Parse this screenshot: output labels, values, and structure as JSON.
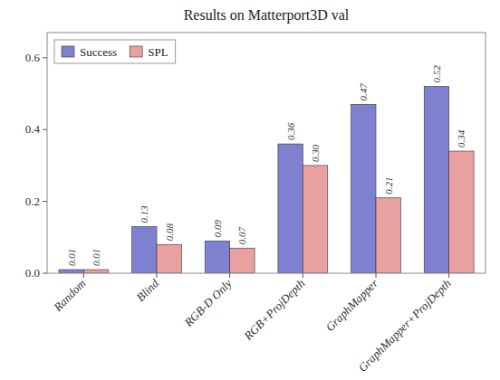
{
  "chart_data": {
    "type": "bar",
    "title": "Results on Matterport3D val",
    "categories": [
      "Random",
      "Blind",
      "RGB-D Only",
      "RGB+ProjDepth",
      "GraphMapper",
      "GraphMapper+ProjDepth"
    ],
    "series": [
      {
        "name": "Success",
        "color": "#8080d0",
        "values": [
          0.01,
          0.13,
          0.09,
          0.36,
          0.47,
          0.52
        ],
        "value_labels": [
          "0.01",
          "0.13",
          "0.09",
          "0.36",
          "0.47",
          "0.52"
        ]
      },
      {
        "name": "SPL",
        "color": "#e8a0a0",
        "values": [
          0.01,
          0.08,
          0.07,
          0.3,
          0.21,
          0.34
        ],
        "value_labels": [
          "0.01",
          "0.08",
          "0.07",
          "0.30",
          "0.21",
          "0.34"
        ]
      }
    ],
    "ylim": [
      0,
      0.67
    ],
    "yticks": [
      {
        "value": 0.0,
        "label": "0.0"
      },
      0.2,
      0.4,
      0.6
    ],
    "grid": false,
    "legend": "upper left",
    "data_labels": true
  }
}
